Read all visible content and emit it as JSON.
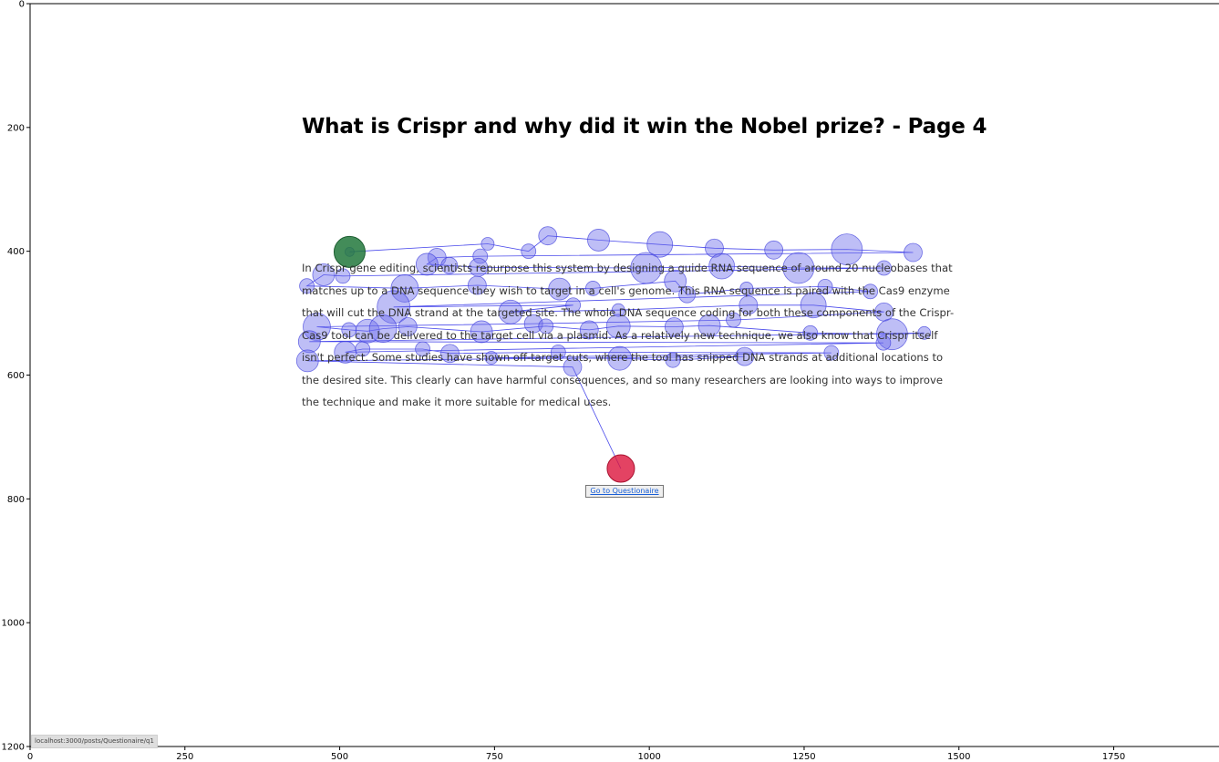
{
  "page": {
    "title": "What is Crispr and why did it win the Nobel prize? - Page 4",
    "paragraph": "In Crispr gene editing, scientists repurpose this system by designing a guide RNA sequence of around 20 nucleobases that matches up to a DNA sequence they wish to target in a cell's genome. This RNA sequence is paired with the Cas9 enzyme that will cut the DNA strand at the targeted site. The whole DNA sequence coding for both these components of the Crispr-Cas9 tool can be delivered to the target cell via a plasmid. As a relatively new technique, we also know that Crispr itself isn't perfect. Some studies have shown off-target cuts, where the tool has snipped DNA strands at additional locations to the desired site. This clearly can have harmful consequences, and so many researchers are looking into ways to improve the technique and make it more suitable for medical uses.",
    "button_label": "Go to Questionaire",
    "status_url": "localhost:3000/posts/Questionaire/q1"
  },
  "chart_data": {
    "type": "scatter",
    "xlim": [
      0,
      1920
    ],
    "ylim": [
      1200,
      0
    ],
    "x_ticks": [
      0,
      250,
      500,
      750,
      1000,
      1250,
      1500,
      1750
    ],
    "y_ticks": [
      0,
      200,
      400,
      600,
      800,
      1000,
      1200
    ],
    "colors": {
      "fixation_fill": "rgba(110,110,235,0.45)",
      "fixation_stroke": "rgba(60,60,220,0.7)",
      "saccade_line": "#2a2ae8",
      "start_fill": "rgba(34,120,60,0.85)",
      "end_fill": "rgba(220,20,60,0.8)"
    },
    "start_point": {
      "x": 516,
      "y": 401,
      "r": 17
    },
    "end_point": {
      "x": 954,
      "y": 751,
      "r": 15
    },
    "fixations": [
      {
        "x": 516,
        "y": 401,
        "r": 5
      },
      {
        "x": 739,
        "y": 388,
        "r": 7
      },
      {
        "x": 805,
        "y": 400,
        "r": 8
      },
      {
        "x": 836,
        "y": 375,
        "r": 10
      },
      {
        "x": 918,
        "y": 382,
        "r": 12
      },
      {
        "x": 1017,
        "y": 389,
        "r": 14
      },
      {
        "x": 1105,
        "y": 395,
        "r": 10
      },
      {
        "x": 1201,
        "y": 398,
        "r": 10
      },
      {
        "x": 1319,
        "y": 397,
        "r": 17
      },
      {
        "x": 1426,
        "y": 402,
        "r": 10
      },
      {
        "x": 727,
        "y": 408,
        "r": 8
      },
      {
        "x": 657,
        "y": 410,
        "r": 10
      },
      {
        "x": 641,
        "y": 421,
        "r": 12
      },
      {
        "x": 677,
        "y": 423,
        "r": 9
      },
      {
        "x": 724,
        "y": 426,
        "r": 10
      },
      {
        "x": 995,
        "y": 427,
        "r": 17
      },
      {
        "x": 1117,
        "y": 424,
        "r": 14
      },
      {
        "x": 1241,
        "y": 427,
        "r": 17
      },
      {
        "x": 1379,
        "y": 427,
        "r": 8
      },
      {
        "x": 505,
        "y": 440,
        "r": 8
      },
      {
        "x": 474,
        "y": 438,
        "r": 12
      },
      {
        "x": 447,
        "y": 456,
        "r": 8
      },
      {
        "x": 605,
        "y": 460,
        "r": 15
      },
      {
        "x": 722,
        "y": 455,
        "r": 10
      },
      {
        "x": 855,
        "y": 461,
        "r": 12
      },
      {
        "x": 909,
        "y": 460,
        "r": 8
      },
      {
        "x": 1042,
        "y": 448,
        "r": 12
      },
      {
        "x": 1061,
        "y": 470,
        "r": 9
      },
      {
        "x": 1157,
        "y": 460,
        "r": 7
      },
      {
        "x": 1284,
        "y": 457,
        "r": 8
      },
      {
        "x": 1357,
        "y": 465,
        "r": 8
      },
      {
        "x": 587,
        "y": 490,
        "r": 18
      },
      {
        "x": 877,
        "y": 487,
        "r": 8
      },
      {
        "x": 776,
        "y": 498,
        "r": 13
      },
      {
        "x": 950,
        "y": 495,
        "r": 7
      },
      {
        "x": 1160,
        "y": 487,
        "r": 10
      },
      {
        "x": 1265,
        "y": 487,
        "r": 14
      },
      {
        "x": 1379,
        "y": 498,
        "r": 10
      },
      {
        "x": 1136,
        "y": 511,
        "r": 8
      },
      {
        "x": 813,
        "y": 517,
        "r": 10
      },
      {
        "x": 463,
        "y": 522,
        "r": 15
      },
      {
        "x": 515,
        "y": 527,
        "r": 8
      },
      {
        "x": 545,
        "y": 529,
        "r": 13
      },
      {
        "x": 570,
        "y": 525,
        "r": 15
      },
      {
        "x": 610,
        "y": 522,
        "r": 10
      },
      {
        "x": 729,
        "y": 530,
        "r": 12
      },
      {
        "x": 833,
        "y": 521,
        "r": 8
      },
      {
        "x": 903,
        "y": 527,
        "r": 10
      },
      {
        "x": 950,
        "y": 521,
        "r": 13
      },
      {
        "x": 1040,
        "y": 522,
        "r": 10
      },
      {
        "x": 1097,
        "y": 520,
        "r": 12
      },
      {
        "x": 1260,
        "y": 532,
        "r": 8
      },
      {
        "x": 1392,
        "y": 534,
        "r": 17
      },
      {
        "x": 1444,
        "y": 532,
        "r": 7
      },
      {
        "x": 451,
        "y": 546,
        "r": 12
      },
      {
        "x": 1378,
        "y": 548,
        "r": 8
      },
      {
        "x": 509,
        "y": 563,
        "r": 12
      },
      {
        "x": 537,
        "y": 558,
        "r": 8
      },
      {
        "x": 634,
        "y": 558,
        "r": 8
      },
      {
        "x": 678,
        "y": 565,
        "r": 10
      },
      {
        "x": 853,
        "y": 563,
        "r": 8
      },
      {
        "x": 1294,
        "y": 564,
        "r": 8
      },
      {
        "x": 745,
        "y": 572,
        "r": 7
      },
      {
        "x": 952,
        "y": 573,
        "r": 13
      },
      {
        "x": 1038,
        "y": 576,
        "r": 8
      },
      {
        "x": 1154,
        "y": 570,
        "r": 10
      },
      {
        "x": 448,
        "y": 577,
        "r": 12
      },
      {
        "x": 876,
        "y": 587,
        "r": 10
      }
    ]
  }
}
